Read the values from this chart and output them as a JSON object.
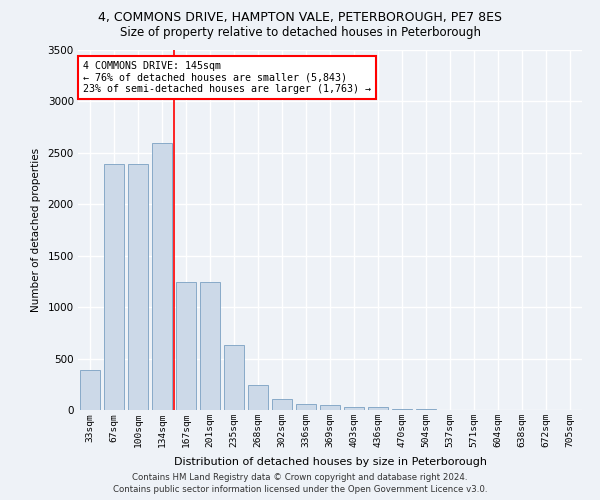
{
  "title_line1": "4, COMMONS DRIVE, HAMPTON VALE, PETERBOROUGH, PE7 8ES",
  "title_line2": "Size of property relative to detached houses in Peterborough",
  "xlabel": "Distribution of detached houses by size in Peterborough",
  "ylabel": "Number of detached properties",
  "categories": [
    "33sqm",
    "67sqm",
    "100sqm",
    "134sqm",
    "167sqm",
    "201sqm",
    "235sqm",
    "268sqm",
    "302sqm",
    "336sqm",
    "369sqm",
    "403sqm",
    "436sqm",
    "470sqm",
    "504sqm",
    "537sqm",
    "571sqm",
    "604sqm",
    "638sqm",
    "672sqm",
    "705sqm"
  ],
  "values": [
    390,
    2390,
    2390,
    2600,
    1240,
    1240,
    635,
    245,
    108,
    58,
    48,
    28,
    28,
    5,
    5,
    3,
    3,
    2,
    2,
    1,
    1
  ],
  "bar_color": "#ccd9e8",
  "bar_edgecolor": "#88aac8",
  "vline_x": 3.5,
  "annotation_title": "4 COMMONS DRIVE: 145sqm",
  "annotation_line2": "← 76% of detached houses are smaller (5,843)",
  "annotation_line3": "23% of semi-detached houses are larger (1,763) →",
  "annotation_box_color": "white",
  "annotation_box_edgecolor": "red",
  "vline_color": "red",
  "ylim": [
    0,
    3500
  ],
  "yticks": [
    0,
    500,
    1000,
    1500,
    2000,
    2500,
    3000,
    3500
  ],
  "background_color": "#eef2f7",
  "grid_color": "white",
  "footer_line1": "Contains HM Land Registry data © Crown copyright and database right 2024.",
  "footer_line2": "Contains public sector information licensed under the Open Government Licence v3.0."
}
